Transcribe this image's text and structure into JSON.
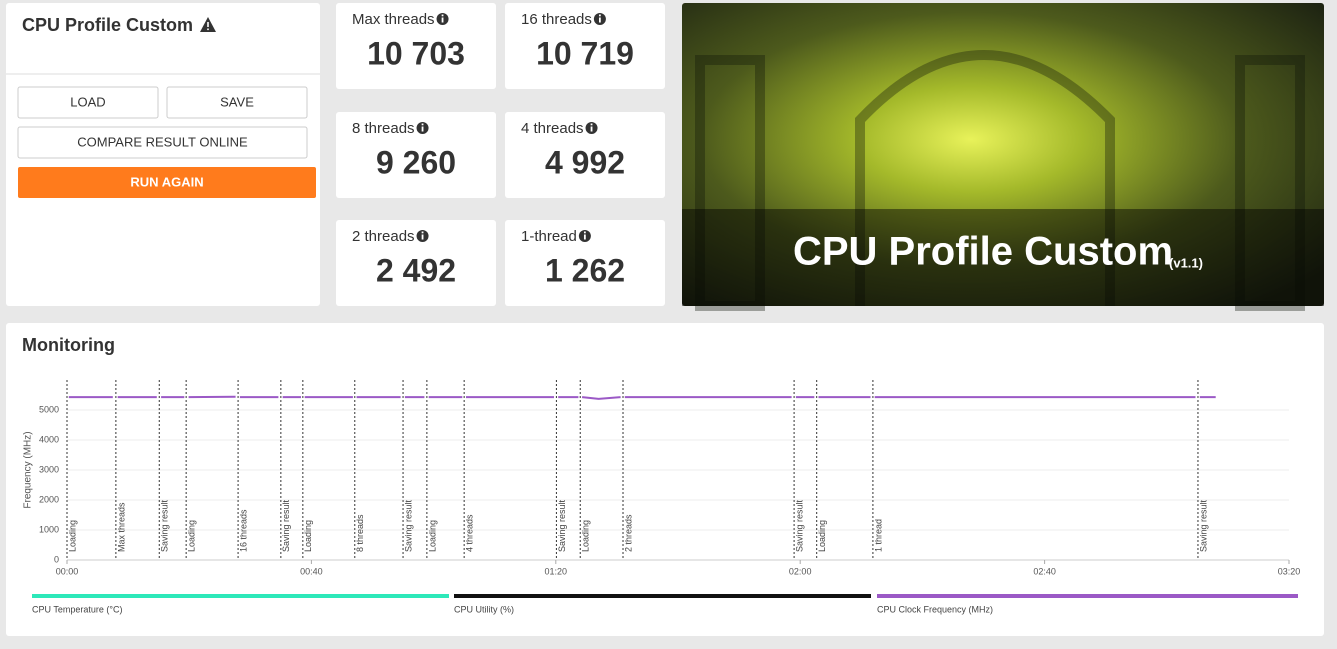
{
  "header": {
    "title": "CPU Profile Custom"
  },
  "buttons": [
    "LOAD",
    "SAVE",
    "COMPARE RESULT ONLINE",
    "RUN AGAIN"
  ],
  "scores": [
    {
      "label": "Max threads",
      "score": "10 703"
    },
    {
      "label": "16 threads",
      "score": "10 719"
    },
    {
      "label": "8 threads",
      "score": "9 260"
    },
    {
      "label": "4 threads",
      "score": "4 992"
    },
    {
      "label": "2 threads",
      "score": "2 492"
    },
    {
      "label": "1-thread",
      "score": "1 262"
    }
  ],
  "banner": {
    "title": "CPU Profile Custom",
    "version": "(v1.1)"
  },
  "monitoring": {
    "title": "Monitoring"
  },
  "chart_data": {
    "type": "line",
    "y_label": "Frequency (MHz)",
    "xlim": [
      0,
      200
    ],
    "ylim": [
      0,
      6000
    ],
    "xticks": [
      {
        "value": 0,
        "label": "00:00"
      },
      {
        "value": 40,
        "label": "00:40"
      },
      {
        "value": 80,
        "label": "01:20"
      },
      {
        "value": 120,
        "label": "02:00"
      },
      {
        "value": 160,
        "label": "02:40"
      },
      {
        "value": 200,
        "label": "03:20"
      }
    ],
    "yticks": [
      0,
      1000,
      2000,
      3000,
      4000,
      5000
    ],
    "grid": true,
    "x": [
      0.3,
      7.5,
      8,
      8.3,
      14.7,
      15.1,
      15.4,
      19.2,
      19.5,
      19.9,
      27.6,
      28,
      28.3,
      34.6,
      35,
      35.3,
      38.3,
      38.6,
      38.9,
      46.8,
      47.1,
      47.4,
      54.6,
      55,
      55.3,
      58.5,
      58.9,
      59.2,
      64.7,
      65,
      65.3,
      79.7,
      80.1,
      80.4,
      83.7,
      84,
      84.3,
      87,
      90.6,
      91,
      91.3,
      118.6,
      119,
      119.3,
      122.3,
      122.7,
      123,
      131.5,
      131.9,
      132.2,
      184.7,
      185.1,
      185.4,
      188
    ],
    "series": [
      {
        "name": "CPU Temperature (°C)",
        "color": "#2de8b9",
        "values": [
          null,
          null,
          null,
          null,
          null,
          null,
          null,
          null,
          null,
          null,
          null,
          null,
          null,
          null,
          null,
          null,
          null,
          null,
          null,
          null,
          null,
          null,
          null,
          null,
          null,
          null,
          null,
          null,
          null,
          null,
          null,
          null,
          null,
          null,
          null,
          null,
          null,
          null,
          null,
          null,
          null,
          null,
          null,
          null,
          null,
          null,
          null,
          null,
          null,
          null,
          null,
          null,
          null,
          null
        ]
      },
      {
        "name": "CPU Utility (%)",
        "color": "#111111",
        "values": [
          null,
          null,
          null,
          null,
          null,
          null,
          null,
          null,
          null,
          null,
          null,
          null,
          null,
          null,
          null,
          null,
          null,
          null,
          null,
          null,
          null,
          null,
          null,
          null,
          null,
          null,
          null,
          null,
          null,
          null,
          null,
          null,
          null,
          null,
          null,
          null,
          null,
          null,
          null,
          null,
          null,
          null,
          null,
          null,
          null,
          null,
          null,
          null,
          null,
          null,
          null,
          null,
          null,
          null
        ]
      },
      {
        "name": "CPU Clock Frequency (MHz)",
        "color": "#9b59c6",
        "values": [
          5430,
          5430,
          null,
          5430,
          5430,
          null,
          5430,
          5430,
          null,
          5430,
          5440,
          null,
          5430,
          5430,
          null,
          5430,
          5430,
          null,
          5430,
          5430,
          null,
          5430,
          5430,
          null,
          5430,
          5430,
          null,
          5430,
          5430,
          null,
          5430,
          5430,
          null,
          5430,
          5430,
          null,
          5430,
          5370,
          5430,
          null,
          5430,
          5430,
          null,
          5430,
          5430,
          null,
          5430,
          5430,
          null,
          5430,
          5430,
          null,
          5430,
          5430
        ]
      }
    ],
    "annotations": [
      {
        "x": 0,
        "label": "Loading"
      },
      {
        "x": 8,
        "label": "Max threads"
      },
      {
        "x": 15.1,
        "label": "Saving result"
      },
      {
        "x": 19.5,
        "label": "Loading"
      },
      {
        "x": 28,
        "label": "16 threads"
      },
      {
        "x": 35,
        "label": "Saving result"
      },
      {
        "x": 38.6,
        "label": "Loading"
      },
      {
        "x": 47.1,
        "label": "8 threads"
      },
      {
        "x": 55,
        "label": "Saving result"
      },
      {
        "x": 58.9,
        "label": "Loading"
      },
      {
        "x": 65,
        "label": "4 threads"
      },
      {
        "x": 80.1,
        "label": "Saving result"
      },
      {
        "x": 84,
        "label": "Loading"
      },
      {
        "x": 91,
        "label": "2 threads"
      },
      {
        "x": 119,
        "label": "Saving result"
      },
      {
        "x": 122.7,
        "label": "Loading"
      },
      {
        "x": 131.9,
        "label": "1 thread"
      },
      {
        "x": 185.1,
        "label": "Saving result"
      }
    ]
  }
}
